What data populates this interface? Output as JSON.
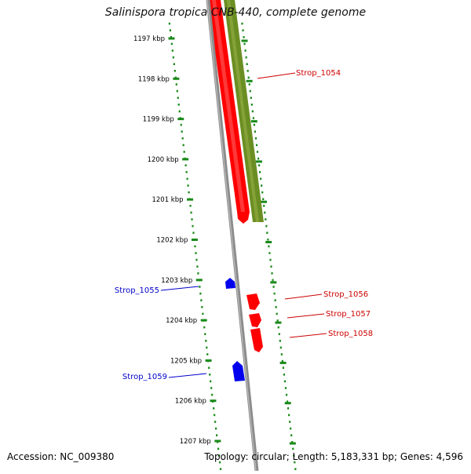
{
  "title": "Salinispora tropica CNB-440, complete genome",
  "footer": {
    "accession": "Accession: NC_009380",
    "topology": "Topology: circular; Length: 5,183,331 bp; Genes: 4,596"
  },
  "colors": {
    "ruler": "#1a8a1a",
    "backbone": "#8c8c8c",
    "forward_gene": "#ff0000",
    "reverse_gene": "#0000ee",
    "other_feature": "#6b8e23",
    "forward_label": "#cc0000",
    "reverse_label": "#0000cc"
  },
  "ruler_ticks": [
    {
      "label": "1197 kbp",
      "kbp": 1197
    },
    {
      "label": "1198 kbp",
      "kbp": 1198
    },
    {
      "label": "1199 kbp",
      "kbp": 1199
    },
    {
      "label": "1200 kbp",
      "kbp": 1200
    },
    {
      "label": "1201 kbp",
      "kbp": 1201
    },
    {
      "label": "1202 kbp",
      "kbp": 1202
    },
    {
      "label": "1203 kbp",
      "kbp": 1203
    },
    {
      "label": "1204 kbp",
      "kbp": 1204
    },
    {
      "label": "1205 kbp",
      "kbp": 1205
    },
    {
      "label": "1206 kbp",
      "kbp": 1206
    },
    {
      "label": "1207 kbp",
      "kbp": 1207
    }
  ],
  "genes": [
    {
      "label": "Strop_1054",
      "strand": "forward"
    },
    {
      "label": "Strop_1055",
      "strand": "reverse"
    },
    {
      "label": "Strop_1056",
      "strand": "forward"
    },
    {
      "label": "Strop_1057",
      "strand": "forward"
    },
    {
      "label": "Strop_1058",
      "strand": "forward"
    },
    {
      "label": "Strop_1059",
      "strand": "reverse"
    }
  ]
}
